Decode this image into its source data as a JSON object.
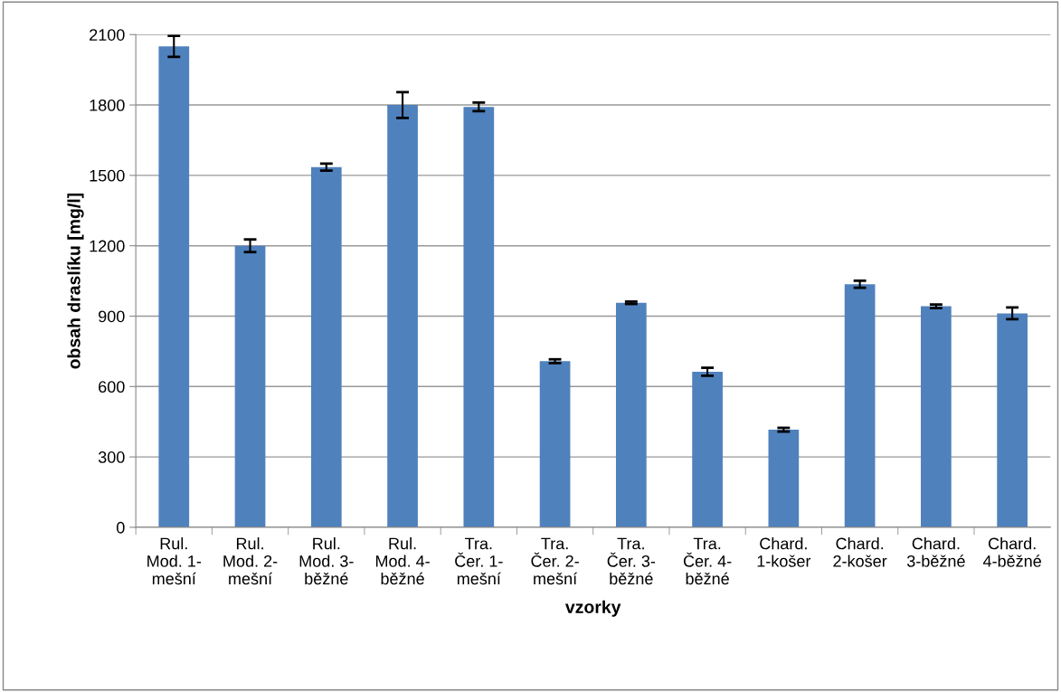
{
  "chart_data": {
    "type": "bar",
    "xlabel": "vzorky",
    "ylabel": "obsah draslíku [mg/l]",
    "categories": [
      "Rul.\nMod. 1-\nmešní",
      "Rul.\nMod. 2-\nmešní",
      "Rul.\nMod. 3-\nběžné",
      "Rul.\nMod. 4-\nběžné",
      "Tra.\nČer. 1-\nmešní",
      "Tra.\nČer. 2-\nmešní",
      "Tra.\nČer. 3-\nběžné",
      "Tra.\nČer. 4-\nběžné",
      "Chard.\n1-košer",
      "Chard.\n2-košer",
      "Chard.\n3-běžné",
      "Chard.\n4-běžné"
    ],
    "values": [
      2050,
      1200,
      1535,
      1800,
      1792,
      708,
      957,
      663,
      416,
      1036,
      942,
      912
    ],
    "errors": [
      45,
      27,
      15,
      55,
      18,
      8,
      5,
      17,
      8,
      15,
      8,
      25
    ],
    "color": "#4f81bd",
    "ylim": [
      0,
      2100
    ],
    "yticks": [
      0,
      300,
      600,
      900,
      1200,
      1500,
      1800,
      2100
    ],
    "grid": "y"
  }
}
